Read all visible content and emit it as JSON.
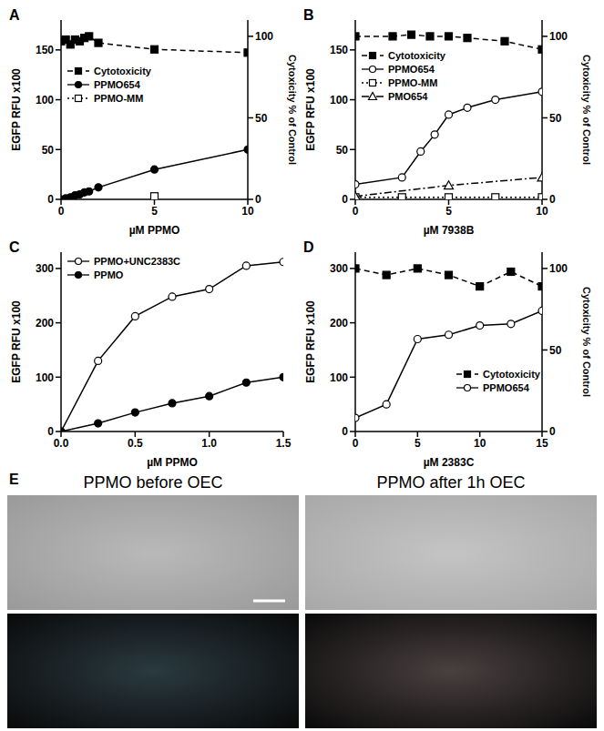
{
  "chart_data": [
    {
      "type": "line",
      "title": "A",
      "x_label": "µM PPMO",
      "y_label": "EGFP RFU x100",
      "y2_label": "Cytoxicity % of Control",
      "xlim": [
        0,
        10
      ],
      "xticks": [
        0,
        5,
        10
      ],
      "ylim": [
        0,
        180
      ],
      "yticks": [
        0,
        50,
        100,
        150
      ],
      "y2lim": [
        0,
        110
      ],
      "y2ticks": [
        0,
        50,
        100
      ],
      "legend": "upper left",
      "series": [
        {
          "name": "Cytotoxicity",
          "color": "#000000",
          "marker": "square",
          "line_style": "dashed",
          "axis": "y2",
          "x": [
            0,
            0.25,
            0.5,
            0.75,
            1,
            1.25,
            1.5,
            2,
            5,
            10
          ],
          "values": [
            97,
            98,
            95,
            98,
            97,
            99,
            100,
            96,
            92,
            90
          ]
        },
        {
          "name": "PPMO654",
          "color": "#000000",
          "marker": "circle",
          "line_style": "solid",
          "x": [
            0,
            0.25,
            0.5,
            0.75,
            1,
            1.25,
            1.5,
            2,
            5,
            10
          ],
          "values": [
            0,
            1,
            2,
            4,
            5,
            7,
            8,
            12,
            30,
            50
          ]
        },
        {
          "name": "PPMO-MM",
          "color": "#000000",
          "marker": "open_square",
          "line_style": "dotted",
          "x": [
            5
          ],
          "values": [
            3
          ]
        }
      ]
    },
    {
      "type": "line",
      "title": "B",
      "x_label": "µM 7938B",
      "y_label": "EGFP RFU x100",
      "y2_label": "Cytoxicity % of Control",
      "xlim": [
        0,
        10
      ],
      "xticks": [
        0,
        5,
        10
      ],
      "ylim": [
        0,
        180
      ],
      "yticks": [
        0,
        50,
        100,
        150
      ],
      "y2lim": [
        0,
        110
      ],
      "y2ticks": [
        0,
        50,
        100
      ],
      "legend": "upper left",
      "series": [
        {
          "name": "Cytotoxicity",
          "color": "#000000",
          "marker": "square",
          "line_style": "dashed",
          "axis": "y2",
          "x": [
            0,
            2,
            3,
            4,
            5,
            6,
            8,
            10
          ],
          "values": [
            100,
            100,
            101,
            100,
            100,
            99,
            97,
            92
          ]
        },
        {
          "name": "PPMO654",
          "color": "#000000",
          "marker": "open_circle",
          "line_style": "solid",
          "x": [
            0,
            2.5,
            3.5,
            4.25,
            5,
            6,
            7.5,
            10
          ],
          "values": [
            15,
            22,
            48,
            65,
            85,
            92,
            100,
            108
          ]
        },
        {
          "name": "PPMO-MM",
          "color": "#000000",
          "marker": "open_square",
          "line_style": "dotted",
          "x": [
            0,
            2.5,
            5,
            7.5,
            10
          ],
          "values": [
            2,
            2,
            2,
            2,
            2
          ]
        },
        {
          "name": "PMO654",
          "color": "#000000",
          "marker": "open_triangle",
          "line_style": "dashdot",
          "x": [
            0,
            5,
            10
          ],
          "values": [
            3,
            14,
            22
          ]
        }
      ]
    },
    {
      "type": "line",
      "title": "C",
      "x_label": "µM PPMO",
      "y_label": "EGFP RFU x100",
      "xlim": [
        0,
        1.5
      ],
      "xticks": [
        {
          "value": 0,
          "label": "0.0"
        },
        {
          "value": 0.5,
          "label": "0.5"
        },
        {
          "value": 1,
          "label": "1.0"
        },
        {
          "value": 1.5,
          "label": "1.5"
        }
      ],
      "ylim": [
        0,
        330
      ],
      "yticks": [
        0,
        100,
        200,
        300
      ],
      "legend": "upper left",
      "series": [
        {
          "name": "PPMO+UNC2383C",
          "color": "#000000",
          "marker": "open_circle",
          "line_style": "solid",
          "x": [
            0,
            0.25,
            0.5,
            0.75,
            1,
            1.25,
            1.5
          ],
          "values": [
            0,
            130,
            212,
            248,
            262,
            305,
            312
          ]
        },
        {
          "name": "PPMO",
          "color": "#000000",
          "marker": "circle",
          "line_style": "solid",
          "x": [
            0,
            0.25,
            0.5,
            0.75,
            1,
            1.25,
            1.5
          ],
          "values": [
            0,
            15,
            35,
            52,
            65,
            90,
            100
          ]
        }
      ]
    },
    {
      "type": "line",
      "title": "D",
      "x_label": "µM 2383C",
      "y_label": "EGFP RFU x100",
      "y2_label": "Cytoxicity % of Control",
      "xlim": [
        0,
        15
      ],
      "xticks": [
        0,
        5,
        10,
        15
      ],
      "ylim": [
        0,
        330
      ],
      "yticks": [
        0,
        100,
        200,
        300
      ],
      "y2lim": [
        0,
        110
      ],
      "y2ticks": [
        0,
        50,
        100
      ],
      "legend": "center right",
      "series": [
        {
          "name": "Cytotoxicity",
          "color": "#000000",
          "marker": "square",
          "line_style": "dashed",
          "axis": "y2",
          "x": [
            0,
            2.5,
            5,
            7.5,
            10,
            12.5,
            15
          ],
          "values": [
            100,
            96,
            100,
            96,
            89,
            98,
            89
          ]
        },
        {
          "name": "PPMO654",
          "color": "#000000",
          "marker": "open_circle",
          "line_style": "solid",
          "x": [
            0,
            2.5,
            5,
            7.5,
            10,
            12.5,
            15
          ],
          "values": [
            25,
            50,
            170,
            178,
            195,
            198,
            222
          ]
        }
      ]
    }
  ],
  "panel_e": {
    "title": "E",
    "images": [
      {
        "caption": "PPMO before OEC"
      },
      {
        "caption": "PPMO after 1h OEC"
      }
    ]
  }
}
